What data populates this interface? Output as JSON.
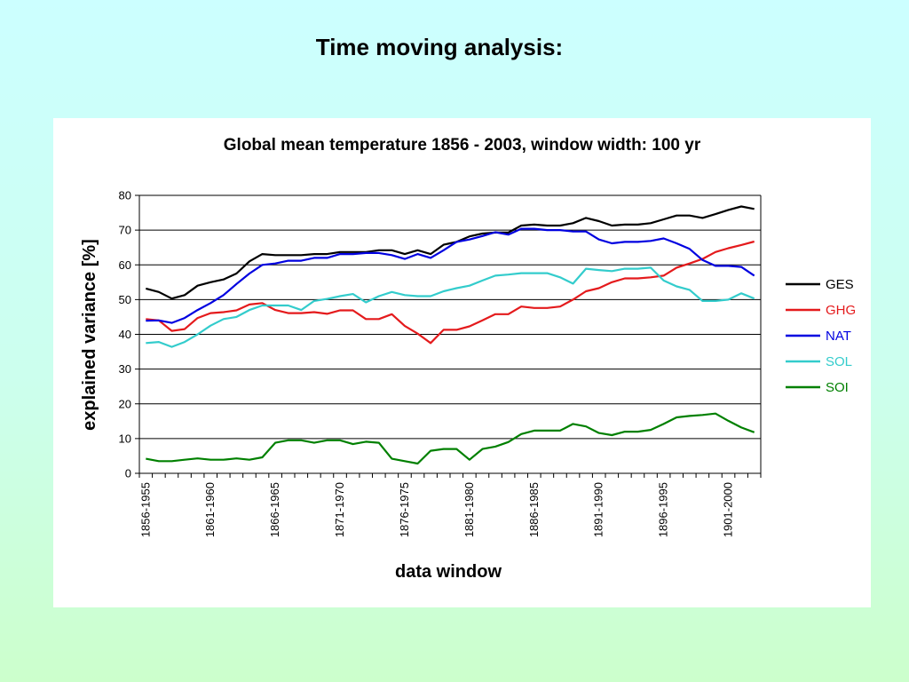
{
  "slide": {
    "title": "Time moving analysis:"
  },
  "chart_data": {
    "type": "line",
    "title": "Global mean temperature 1856 - 2003, window width: 100 yr",
    "xlabel": "data window",
    "ylabel": "explained variance [%]",
    "ylim": [
      0,
      80
    ],
    "yticks": [
      0,
      10,
      20,
      30,
      40,
      50,
      60,
      70,
      80
    ],
    "grid": "horizontal",
    "legend_position": "right",
    "x_tick_labels": [
      {
        "index": 0,
        "label": "1856-1955"
      },
      {
        "index": 5,
        "label": "1861-1960"
      },
      {
        "index": 10,
        "label": "1866-1965"
      },
      {
        "index": 15,
        "label": "1871-1970"
      },
      {
        "index": 20,
        "label": "1876-1975"
      },
      {
        "index": 25,
        "label": "1881-1980"
      },
      {
        "index": 30,
        "label": "1886-1985"
      },
      {
        "index": 35,
        "label": "1891-1990"
      },
      {
        "index": 40,
        "label": "1896-1995"
      },
      {
        "index": 45,
        "label": "1901-2000"
      }
    ],
    "x_count": 48,
    "series": [
      {
        "name": "GES",
        "color": "#000000",
        "values": [
          53.2,
          52.2,
          50.3,
          51.3,
          54.0,
          55.0,
          55.8,
          57.5,
          61.0,
          63.1,
          62.8,
          62.8,
          62.8,
          63.1,
          63.1,
          63.7,
          63.7,
          63.7,
          64.2,
          64.2,
          63.1,
          64.2,
          63.1,
          65.8,
          66.6,
          68.2,
          69.0,
          69.3,
          69.3,
          71.3,
          71.6,
          71.3,
          71.3,
          72.0,
          73.5,
          72.6,
          71.3,
          71.6,
          71.6,
          72.0,
          73.1,
          74.2,
          74.2,
          73.5,
          74.6,
          75.8,
          76.8,
          76.1
        ]
      },
      {
        "name": "GHG",
        "color": "#e41a1c",
        "values": [
          44.4,
          44.0,
          41.0,
          41.5,
          44.7,
          46.1,
          46.4,
          46.9,
          48.6,
          49.0,
          47.0,
          46.1,
          46.1,
          46.4,
          45.9,
          46.9,
          46.9,
          44.4,
          44.4,
          45.8,
          42.4,
          40.2,
          37.5,
          41.3,
          41.3,
          42.3,
          44.0,
          45.8,
          45.8,
          48.0,
          47.6,
          47.6,
          48.0,
          50.0,
          52.4,
          53.3,
          55.0,
          56.1,
          56.1,
          56.4,
          56.9,
          59.2,
          60.4,
          61.7,
          63.7,
          64.8,
          65.7,
          66.7
        ]
      },
      {
        "name": "NAT",
        "color": "#0000e0",
        "values": [
          43.9,
          44.0,
          43.3,
          44.7,
          47.0,
          49.0,
          51.3,
          54.5,
          57.5,
          60.0,
          60.4,
          61.2,
          61.2,
          62.0,
          62.0,
          63.1,
          63.1,
          63.4,
          63.4,
          62.8,
          61.7,
          63.1,
          62.0,
          64.2,
          66.6,
          67.3,
          68.3,
          69.4,
          68.7,
          70.4,
          70.4,
          70.0,
          70.0,
          69.6,
          69.6,
          67.3,
          66.2,
          66.6,
          66.6,
          66.9,
          67.6,
          66.2,
          64.6,
          61.4,
          59.7,
          59.7,
          59.4,
          56.9
        ]
      },
      {
        "name": "SOL",
        "color": "#33cccc",
        "values": [
          37.5,
          37.8,
          36.4,
          37.8,
          40.0,
          42.5,
          44.4,
          45.0,
          47.0,
          48.3,
          48.3,
          48.3,
          47.0,
          49.6,
          50.2,
          51.0,
          51.6,
          49.2,
          51.0,
          52.2,
          51.3,
          51.0,
          51.0,
          52.4,
          53.3,
          54.0,
          55.5,
          56.9,
          57.2,
          57.6,
          57.6,
          57.6,
          56.4,
          54.6,
          58.9,
          58.5,
          58.2,
          58.9,
          58.9,
          59.2,
          55.5,
          53.8,
          52.8,
          49.6,
          49.6,
          50.0,
          51.8,
          50.3
        ]
      },
      {
        "name": "SOI",
        "color": "#008000",
        "values": [
          4.2,
          3.5,
          3.5,
          3.9,
          4.3,
          3.9,
          3.9,
          4.3,
          3.9,
          4.6,
          8.8,
          9.5,
          9.5,
          8.8,
          9.5,
          9.5,
          8.4,
          9.1,
          8.8,
          4.2,
          3.5,
          2.8,
          6.5,
          7.0,
          7.0,
          3.9,
          7.0,
          7.7,
          9.0,
          11.3,
          12.3,
          12.3,
          12.3,
          14.2,
          13.5,
          11.6,
          11.0,
          12.0,
          12.0,
          12.5,
          14.2,
          16.1,
          16.5,
          16.8,
          17.2,
          15.1,
          13.2,
          11.8
        ]
      }
    ]
  }
}
